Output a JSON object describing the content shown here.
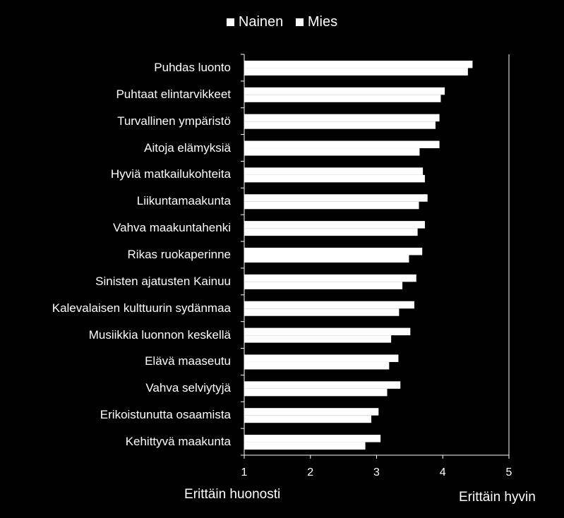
{
  "chart_data": {
    "type": "bar",
    "orientation": "horizontal",
    "categories": [
      "Puhdas luonto",
      "Puhtaat elintarvikkeet",
      "Turvallinen ympäristö",
      "Aitoja elämyksiä",
      "Hyviä matkailukohteita",
      "Liikuntamaakunta",
      "Vahva maakuntahenki",
      "Rikas ruokaperinne",
      "Sinisten ajatusten Kainuu",
      "Kalevalaisen kulttuurin sydänmaa",
      "Musiikkia luonnon keskellä",
      "Elävä maaseutu",
      "Vahva selviytyjä",
      "Erikoistunutta osaamista",
      "Kehittyvä maakunta"
    ],
    "series": [
      {
        "name": "Nainen",
        "values": [
          4.45,
          4.03,
          3.95,
          3.95,
          3.7,
          3.77,
          3.73,
          3.69,
          3.6,
          3.57,
          3.51,
          3.33,
          3.36,
          3.03,
          3.06
        ]
      },
      {
        "name": "Mies",
        "values": [
          4.38,
          3.97,
          3.89,
          3.65,
          3.73,
          3.64,
          3.62,
          3.49,
          3.39,
          3.34,
          3.22,
          3.19,
          3.16,
          2.92,
          2.83
        ]
      }
    ],
    "xlim": [
      1,
      5
    ],
    "xticks": [
      "1",
      "2",
      "3",
      "4",
      "5"
    ],
    "grid": "vertical at 5",
    "legend": "top-center",
    "annotations": {
      "left": "Erittäin huonosti",
      "right": "Erittäin hyvin"
    },
    "colors": {
      "background": "#000000",
      "bars": "#ffffff",
      "text": "#ffffff"
    }
  }
}
